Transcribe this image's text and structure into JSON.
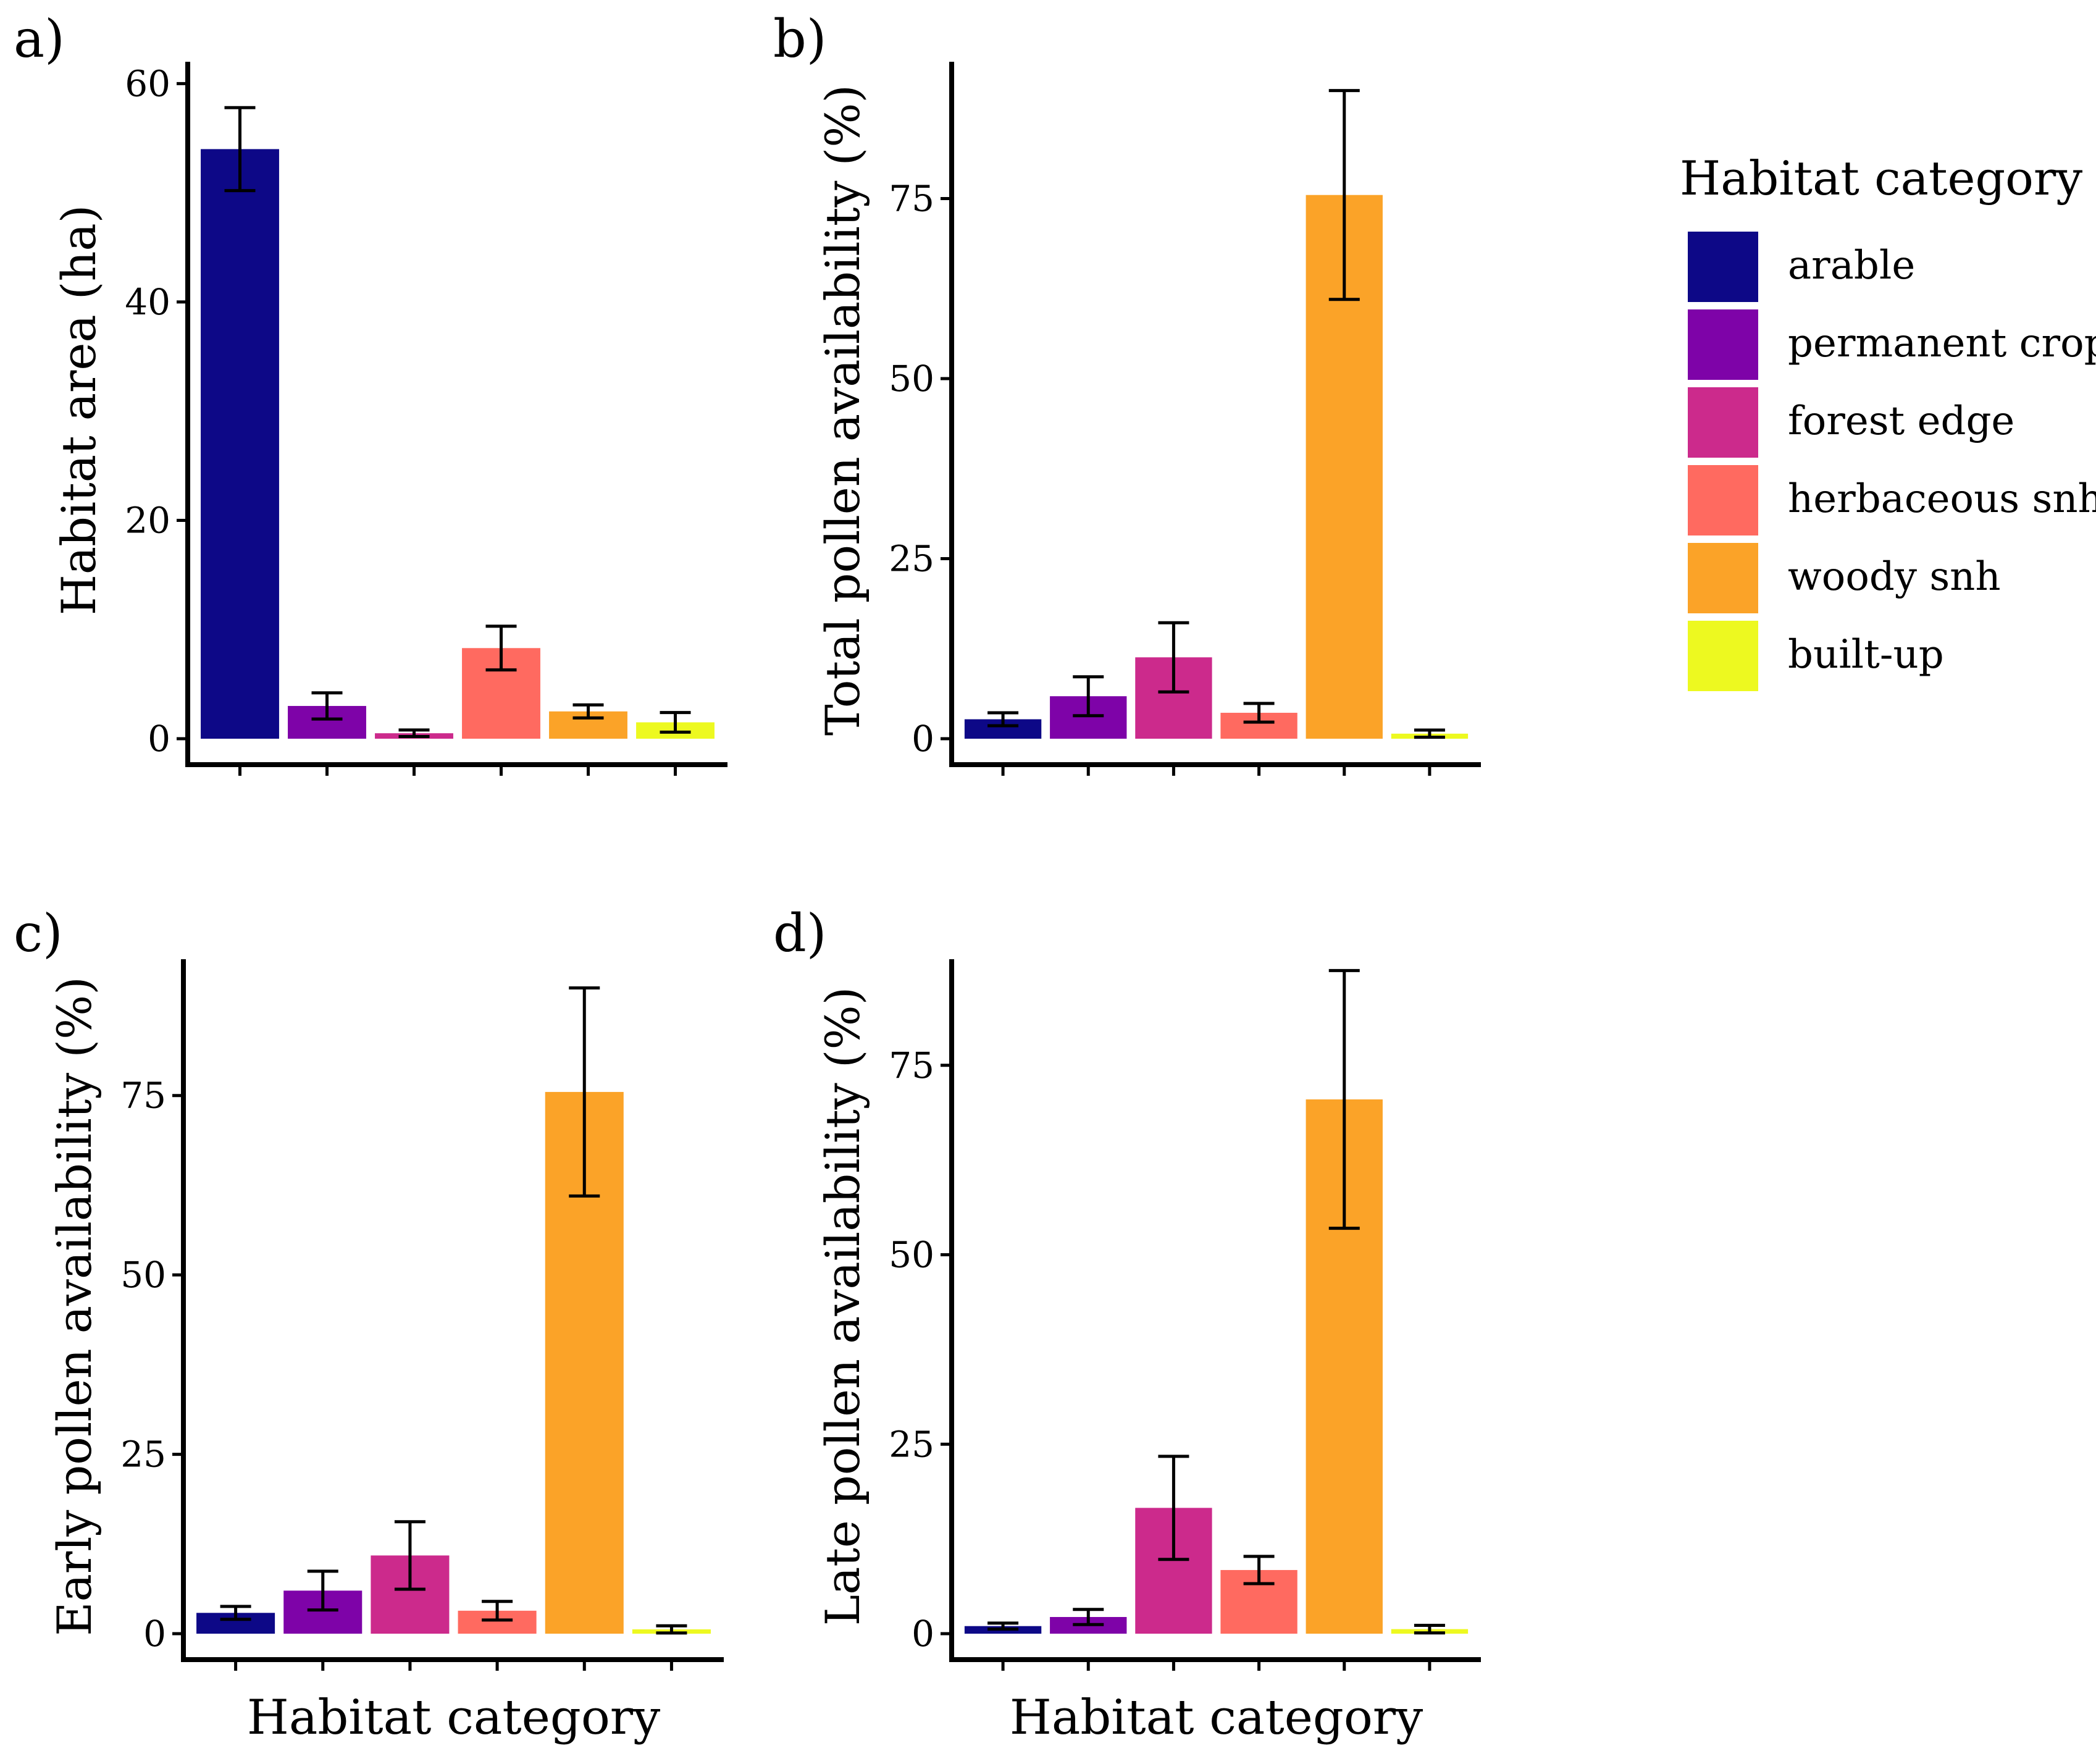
{
  "legend": {
    "title": "Habitat category",
    "placement": "right"
  },
  "categories": [
    "arable",
    "permanent crops",
    "forest edge",
    "herbaceous snh",
    "woody snh",
    "built-up"
  ],
  "colors": [
    "#0D0887",
    "#7E03A8",
    "#CC2A8C",
    "#FF6A60",
    "#FBA328",
    "#EDF920"
  ],
  "chart_data": [
    {
      "type": "bar",
      "panel_label": "a)",
      "title": "",
      "xlabel": "",
      "ylabel": "Habitat area (ha)",
      "ylim": [
        0,
        62
      ],
      "yticks": [
        0,
        20,
        40,
        60
      ],
      "categories": [
        "arable",
        "permanent crops",
        "forest edge",
        "herbaceous snh",
        "woody snh",
        "built-up"
      ],
      "values": [
        54,
        3.0,
        0.5,
        8.3,
        2.5,
        1.5
      ],
      "errors": [
        3.8,
        1.2,
        0.3,
        2.0,
        0.6,
        0.9
      ]
    },
    {
      "type": "bar",
      "panel_label": "b)",
      "title": "",
      "xlabel": "",
      "ylabel": "Total pollen availability (%)",
      "ylim": [
        0,
        94
      ],
      "yticks": [
        0,
        25,
        50,
        75
      ],
      "categories": [
        "arable",
        "permanent crops",
        "forest edge",
        "herbaceous snh",
        "woody snh",
        "built-up"
      ],
      "values": [
        2.7,
        5.9,
        11.3,
        3.6,
        75.5,
        0.7
      ],
      "errors": [
        0.9,
        2.7,
        4.8,
        1.3,
        14.5,
        0.5
      ]
    },
    {
      "type": "bar",
      "panel_label": "c)",
      "title": "",
      "xlabel": "Habitat category",
      "ylabel": "Early pollen availability (%)",
      "ylim": [
        0,
        94
      ],
      "yticks": [
        0,
        25,
        50,
        75
      ],
      "categories": [
        "arable",
        "permanent crops",
        "forest edge",
        "herbaceous snh",
        "woody snh",
        "built-up"
      ],
      "values": [
        2.9,
        6.0,
        10.9,
        3.2,
        75.5,
        0.6
      ],
      "errors": [
        0.9,
        2.7,
        4.7,
        1.3,
        14.5,
        0.5
      ]
    },
    {
      "type": "bar",
      "panel_label": "d)",
      "title": "",
      "xlabel": "Habitat category",
      "ylabel": "Late pollen availability (%)",
      "ylim": [
        0,
        89
      ],
      "yticks": [
        0,
        25,
        50,
        75
      ],
      "categories": [
        "arable",
        "permanent crops",
        "forest edge",
        "herbaceous snh",
        "woody snh",
        "built-up"
      ],
      "values": [
        1.0,
        2.2,
        16.6,
        8.4,
        70.5,
        0.6
      ],
      "errors": [
        0.4,
        1.0,
        6.8,
        1.8,
        17.0,
        0.5
      ]
    }
  ]
}
